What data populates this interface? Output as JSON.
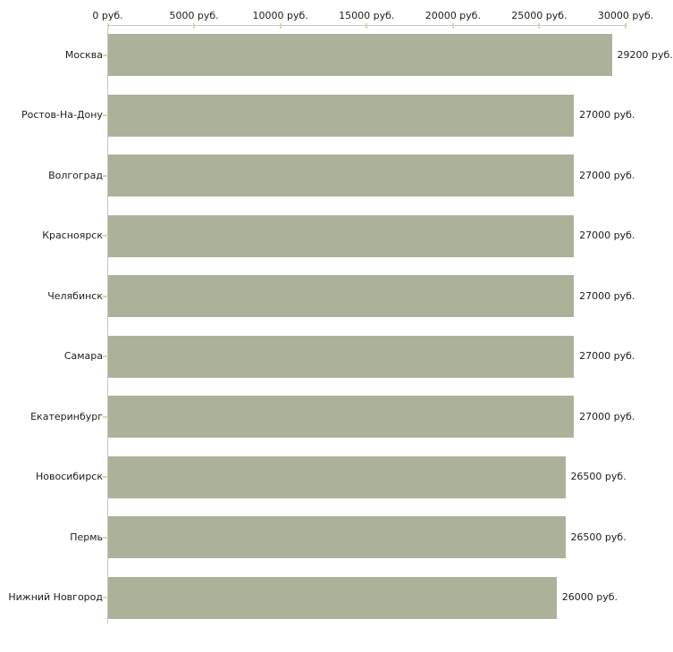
{
  "chart_data": {
    "type": "bar",
    "orientation": "horizontal",
    "title": "",
    "categories": [
      "Москва",
      "Ростов-На-Дону",
      "Волгоград",
      "Красноярск",
      "Челябинск",
      "Самара",
      "Екатеринбург",
      "Новосибирск",
      "Пермь",
      "Нижний Новгород"
    ],
    "values": [
      29200,
      27000,
      27000,
      27000,
      27000,
      27000,
      27000,
      26500,
      26500,
      26000
    ],
    "value_labels": [
      "29200 руб.",
      "27000 руб.",
      "27000 руб.",
      "27000 руб.",
      "27000 руб.",
      "27000 руб.",
      "27000 руб.",
      "26500 руб.",
      "26500 руб.",
      "26000 руб."
    ],
    "x_axis": {
      "position": "top",
      "min": 0,
      "max": 30000,
      "ticks": [
        0,
        5000,
        10000,
        15000,
        20000,
        25000,
        30000
      ],
      "tick_labels": [
        "0 руб.",
        "5000 руб.",
        "10000 руб.",
        "15000 руб.",
        "20000 руб.",
        "25000 руб.",
        "30000 руб."
      ]
    },
    "grid": false,
    "legend": false,
    "colors": {
      "bar": "#abb299",
      "axis_line": "#c6c6c6",
      "tick_mark": "#d8d5b0",
      "text": "#1c1c1c",
      "background": "#ffffff"
    }
  }
}
